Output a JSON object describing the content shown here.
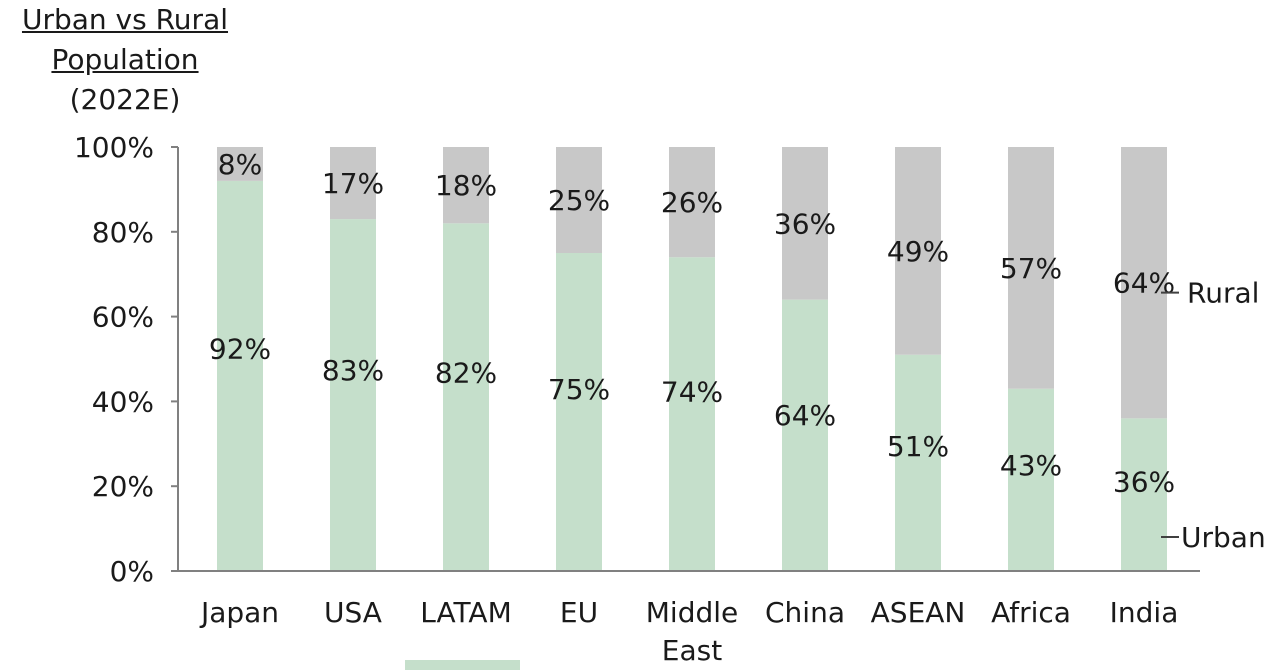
{
  "title": {
    "line1": "Urban vs Rural",
    "line2": "Population",
    "line3": "(2022E)"
  },
  "chart_data": {
    "type": "bar",
    "stacked": true,
    "title": "Urban vs Rural Population (2022E)",
    "categories": [
      "Japan",
      "USA",
      "LATAM",
      "EU",
      "Middle East",
      "China",
      "ASEAN",
      "Africa",
      "India"
    ],
    "category_lines": [
      [
        "Japan"
      ],
      [
        "USA"
      ],
      [
        "LATAM"
      ],
      [
        "EU"
      ],
      [
        "Middle",
        "East"
      ],
      [
        "China"
      ],
      [
        "ASEAN"
      ],
      [
        "Africa"
      ],
      [
        "India"
      ]
    ],
    "series": [
      {
        "name": "Urban",
        "values": [
          92,
          83,
          82,
          75,
          74,
          64,
          51,
          43,
          36
        ],
        "color": "#c5dfcb"
      },
      {
        "name": "Rural",
        "values": [
          8,
          17,
          18,
          25,
          26,
          36,
          49,
          57,
          64
        ],
        "color": "#c8c8c8"
      }
    ],
    "data_labels": {
      "Urban": [
        "92%",
        "83%",
        "82%",
        "75%",
        "74%",
        "64%",
        "51%",
        "43%",
        "36%"
      ],
      "Rural": [
        "8%",
        "17%",
        "18%",
        "25%",
        "26%",
        "36%",
        "49%",
        "57%",
        "64%"
      ]
    },
    "ylim": [
      0,
      100
    ],
    "yticks": [
      0,
      20,
      40,
      60,
      80,
      100
    ],
    "ytick_labels": [
      "0%",
      "20%",
      "40%",
      "60%",
      "80%",
      "100%"
    ],
    "xlabel": "",
    "ylabel": "",
    "grid": false,
    "legend_placement": "right",
    "legend_labels": {
      "Rural": "Rural",
      "Urban": "Urban"
    },
    "colors": {
      "axis": "#808080",
      "text": "#1a1a1a",
      "legend_tick": "#404040"
    }
  }
}
